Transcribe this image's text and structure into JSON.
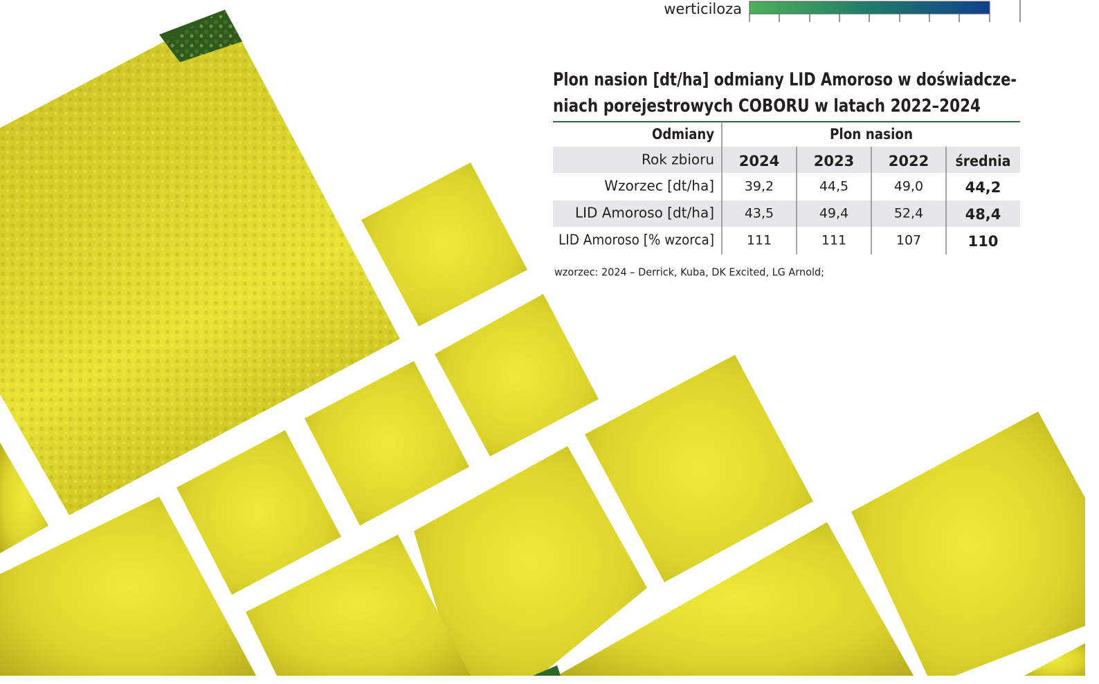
{
  "legend_fragment": {
    "label": "werticiloza"
  },
  "table": {
    "title_lines": [
      "Plon nasion [dt/ha] odmiany LID Amoroso w doświadcze-",
      "niach porejestrowych COBORU w latach 2022–2024"
    ],
    "header": [
      "Odmiany",
      "Plon nasion"
    ],
    "subheader": [
      "Rok zbioru",
      "2024",
      "2023",
      "2022",
      "średnia"
    ],
    "rows": [
      [
        "Wzorzec [dt/ha]",
        "39,2",
        "44,5",
        "49,0",
        "44,2"
      ],
      [
        "LID Amoroso [dt/ha]",
        "43,5",
        "49,4",
        "52,4",
        "48,4"
      ],
      [
        "LID Amoroso [% wzorca]",
        "111",
        "111",
        "107",
        "110"
      ]
    ],
    "footnote": "wzorzec: 2024 – Derrick, Kuba, DK Excited, LG Arnold;"
  }
}
